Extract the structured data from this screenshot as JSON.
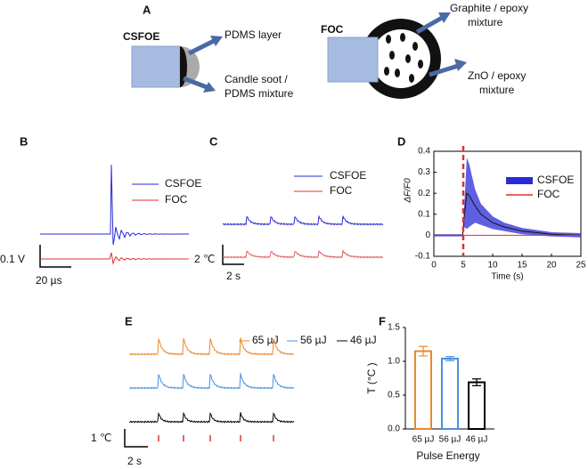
{
  "panel_labels": [
    "A",
    "B",
    "C",
    "D",
    "E",
    "F"
  ],
  "diagram": {
    "csfoe": "CSFOE",
    "pdms_layer": "PDMS layer",
    "candle_soot": [
      "Candle soot /",
      "PDMS mixture"
    ],
    "foc": "FOC",
    "graphite": [
      "Graphite / epoxy",
      "mixture"
    ],
    "zno": [
      "ZnO / epoxy",
      "mixture"
    ]
  },
  "panel_b": {
    "legend": [
      "CSFOE",
      "FOC"
    ],
    "scale_y": "0.1 V",
    "scale_x": "20 µs"
  },
  "panel_c": {
    "legend": [
      "CSFOE",
      "FOC"
    ],
    "scale_y": "2 ℃",
    "scale_x": "2 s"
  },
  "panel_e": {
    "legend": [
      "65 µJ",
      "56 µJ",
      "46 µJ"
    ],
    "scale_y": "1 ℃",
    "scale_x": "2 s"
  },
  "chart_data": [
    {
      "type": "line",
      "xlabel": "Time (s)",
      "ylabel": "ΔF/F0",
      "x": [
        0,
        4.9,
        5.2,
        5.6,
        6,
        7,
        8,
        10,
        12,
        15,
        20,
        25
      ],
      "series": [
        {
          "name": "CSFOE",
          "color": "#2a2ad8",
          "values": [
            0,
            0,
            0.1,
            0.2,
            0.19,
            0.14,
            0.1,
            0.06,
            0.04,
            0.02,
            0.005,
            0
          ],
          "error": [
            0.005,
            0.005,
            0.06,
            0.17,
            0.15,
            0.08,
            0.05,
            0.03,
            0.02,
            0.015,
            0.01,
            0.01
          ]
        },
        {
          "name": "FOC",
          "color": "#e03030",
          "values": [
            0,
            0,
            0,
            0,
            0,
            0,
            0,
            0,
            0,
            0,
            0,
            0
          ]
        }
      ],
      "vline": {
        "x": 5,
        "color": "#e03030"
      },
      "xlim": [
        0,
        25
      ],
      "xticks": [
        0,
        5,
        10,
        15,
        20,
        25
      ],
      "ylim": [
        -0.1,
        0.4
      ],
      "yticks": [
        -0.1,
        0,
        0.1,
        0.2,
        0.3,
        0.4
      ]
    },
    {
      "type": "bar",
      "xlabel": "Pulse Energy",
      "ylabel": "T (°C )",
      "categories": [
        "65 µJ",
        "56 µJ",
        "46 µJ"
      ],
      "values": [
        1.15,
        1.04,
        0.69
      ],
      "errors": [
        0.07,
        0.03,
        0.05
      ],
      "colors": [
        "#e8892b",
        "#4a90e2",
        "#000000"
      ],
      "ylim": [
        0,
        1.5
      ],
      "yticks": [
        {
          "value": 0,
          "label": "0.0"
        },
        0.5,
        {
          "value": 1,
          "label": "1.0"
        },
        1.5
      ]
    }
  ]
}
